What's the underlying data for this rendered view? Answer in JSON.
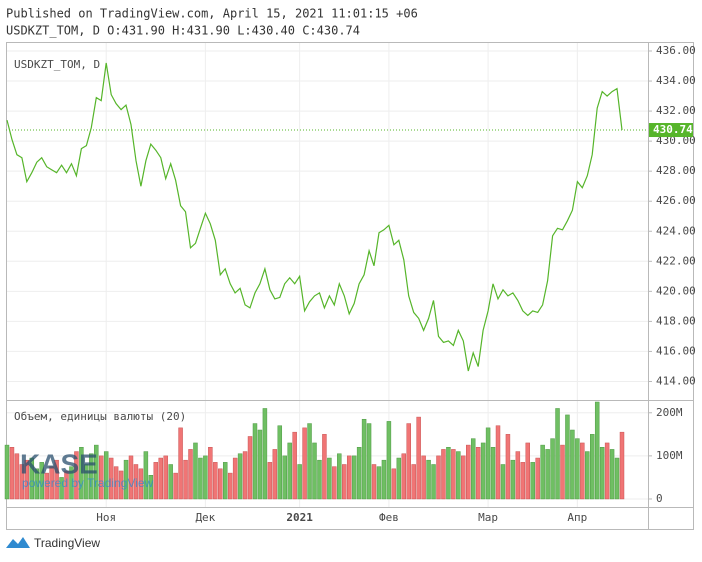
{
  "header": {
    "published": "Published on TradingView.com, April 15, 2021 11:01:15 +06",
    "ohlc": "USDKZT_TOM, D O:431.90 H:431.90 L:430.40 C:430.74"
  },
  "watermark": {
    "logo": "KASE",
    "text": "powered by TradingView"
  },
  "footer": "TradingView",
  "chart_data": [
    {
      "type": "line",
      "title": "USDKZT_TOM, D",
      "color": "#56b52a",
      "categories": [
        null,
        null,
        null,
        null,
        null,
        null,
        null,
        null,
        null,
        null,
        null,
        null,
        null,
        null,
        null,
        null,
        null,
        null,
        null,
        null,
        "Ноя",
        null,
        null,
        null,
        null,
        null,
        null,
        null,
        null,
        null,
        null,
        null,
        null,
        null,
        null,
        null,
        null,
        null,
        null,
        null,
        "Дек",
        null,
        null,
        null,
        null,
        null,
        null,
        null,
        null,
        null,
        null,
        null,
        null,
        null,
        null,
        null,
        null,
        null,
        null,
        "2021",
        null,
        null,
        null,
        null,
        null,
        null,
        null,
        null,
        null,
        null,
        null,
        null,
        null,
        null,
        null,
        null,
        null,
        "Фев",
        null,
        null,
        null,
        null,
        null,
        null,
        null,
        null,
        null,
        null,
        null,
        null,
        null,
        null,
        null,
        null,
        null,
        null,
        null,
        "Мар",
        null,
        null,
        null,
        null,
        null,
        null,
        null,
        null,
        null,
        null,
        null,
        null,
        null,
        null,
        null,
        null,
        null,
        "Апр",
        null,
        null,
        null,
        null,
        null,
        null,
        null,
        null,
        null
      ],
      "values": [
        431.4,
        430.1,
        429.1,
        428.9,
        427.3,
        427.9,
        428.6,
        428.9,
        428.3,
        428.1,
        427.9,
        428.4,
        427.9,
        428.5,
        427.7,
        429.5,
        429.7,
        430.9,
        432.9,
        432.7,
        435.2,
        433.1,
        432.5,
        432.1,
        432.4,
        431.1,
        428.7,
        427.0,
        428.7,
        429.8,
        429.4,
        428.9,
        427.5,
        428.5,
        427.4,
        425.7,
        425.3,
        422.9,
        423.2,
        424.2,
        425.2,
        424.5,
        423.4,
        421.1,
        421.5,
        420.5,
        419.9,
        420.2,
        419.1,
        418.9,
        419.9,
        420.5,
        421.5,
        420.1,
        419.5,
        419.6,
        420.5,
        420.9,
        420.5,
        421.0,
        418.7,
        419.3,
        419.7,
        419.9,
        418.9,
        419.7,
        419.1,
        420.5,
        419.7,
        418.5,
        419.2,
        420.5,
        421.1,
        422.7,
        421.7,
        423.9,
        424.1,
        424.4,
        423.1,
        423.4,
        422.1,
        419.7,
        418.6,
        418.2,
        417.4,
        418.2,
        419.4,
        417.0,
        416.6,
        416.7,
        416.4,
        417.4,
        416.7,
        414.7,
        415.9,
        415.0,
        417.4,
        418.7,
        420.5,
        419.5,
        420.1,
        419.7,
        419.9,
        419.4,
        418.7,
        418.4,
        418.7,
        418.6,
        419.1,
        420.7,
        423.7,
        424.2,
        424.1,
        424.7,
        425.4,
        427.3,
        426.9,
        427.7,
        429.1,
        432.2,
        433.3,
        433.0,
        433.3,
        433.5,
        430.74
      ],
      "value_labels": {
        "124": "430.74"
      },
      "ylim": [
        412.9,
        436.6
      ],
      "yticks": [
        {
          "value": 414,
          "label": "414.00"
        },
        {
          "value": 416,
          "label": "416.00"
        },
        {
          "value": 418,
          "label": "418.00"
        },
        {
          "value": 420,
          "label": "420.00"
        },
        {
          "value": 422,
          "label": "422.00"
        },
        {
          "value": 424,
          "label": "424.00"
        },
        {
          "value": 426,
          "label": "426.00"
        },
        {
          "value": 428,
          "label": "428.00"
        },
        {
          "value": 430,
          "label": "430.00"
        },
        {
          "value": 432,
          "label": "432.00"
        },
        {
          "value": 434,
          "label": "434.00"
        },
        {
          "value": 436,
          "label": "436.00"
        }
      ],
      "grid": true
    },
    {
      "type": "bar",
      "title": "Объем, единицы валюты (20)",
      "up_color": "#6fbf63",
      "down_color": "#f07575",
      "values": [
        125000000,
        120000000,
        105000000,
        80000000,
        90000000,
        95000000,
        70000000,
        85000000,
        60000000,
        75000000,
        90000000,
        50000000,
        65000000,
        75000000,
        110000000,
        120000000,
        80000000,
        105000000,
        125000000,
        100000000,
        110000000,
        95000000,
        75000000,
        65000000,
        90000000,
        100000000,
        80000000,
        70000000,
        110000000,
        55000000,
        85000000,
        95000000,
        100000000,
        80000000,
        60000000,
        165000000,
        90000000,
        115000000,
        130000000,
        95000000,
        100000000,
        120000000,
        85000000,
        70000000,
        85000000,
        60000000,
        95000000,
        105000000,
        110000000,
        145000000,
        175000000,
        160000000,
        210000000,
        85000000,
        115000000,
        170000000,
        100000000,
        130000000,
        155000000,
        80000000,
        165000000,
        175000000,
        130000000,
        90000000,
        150000000,
        95000000,
        75000000,
        105000000,
        80000000,
        100000000,
        100000000,
        120000000,
        185000000,
        175000000,
        80000000,
        75000000,
        90000000,
        180000000,
        70000000,
        95000000,
        105000000,
        175000000,
        80000000,
        190000000,
        100000000,
        90000000,
        80000000,
        100000000,
        115000000,
        120000000,
        115000000,
        110000000,
        100000000,
        125000000,
        140000000,
        120000000,
        130000000,
        165000000,
        120000000,
        170000000,
        80000000,
        150000000,
        90000000,
        110000000,
        85000000,
        130000000,
        85000000,
        95000000,
        125000000,
        115000000,
        140000000,
        210000000,
        125000000,
        195000000,
        160000000,
        140000000,
        130000000,
        110000000,
        150000000,
        225000000,
        120000000,
        130000000,
        115000000,
        95000000,
        155000000
      ],
      "ylim": [
        -14000000,
        225000000
      ],
      "yticks": [
        0,
        {
          "value": 100000000,
          "label": "100M"
        },
        {
          "value": 200000000,
          "label": "200M"
        }
      ]
    }
  ]
}
